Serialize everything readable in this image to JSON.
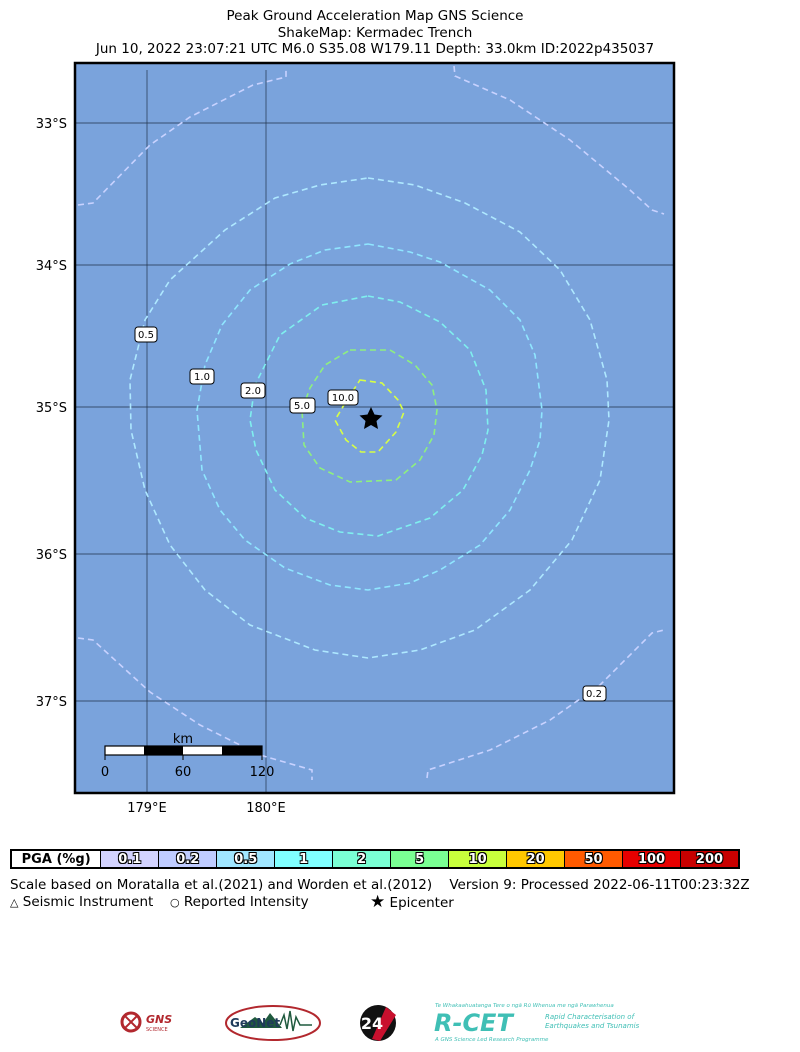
{
  "title": {
    "line1": "Peak Ground Acceleration Map GNS Science",
    "line2": "ShakeMap: Kermadec Trench",
    "line3": "Jun 10, 2022 23:07:21 UTC M6.0 S35.08 W179.11 Depth: 33.0km ID:2022p435037"
  },
  "map": {
    "background_color": "#7aa3dc",
    "lat_labels": [
      "33°S",
      "34°S",
      "35°S",
      "36°S",
      "37°S"
    ],
    "lon_labels": [
      "179°E",
      "180°E"
    ],
    "contour_labels": [
      "0.5",
      "1.0",
      "2.0",
      "5.0",
      "10.0",
      "0.2"
    ],
    "epicenter_icon": "star-icon",
    "scalebar": {
      "unit": "km",
      "ticks": [
        "0",
        "60",
        "120"
      ]
    }
  },
  "legend": {
    "label": "PGA (%g)",
    "items": [
      {
        "value": "0.1",
        "color": "#d3d3ff"
      },
      {
        "value": "0.2",
        "color": "#bfccff"
      },
      {
        "value": "0.5",
        "color": "#a0e6ff"
      },
      {
        "value": "1",
        "color": "#80ffff"
      },
      {
        "value": "2",
        "color": "#7affd4"
      },
      {
        "value": "5",
        "color": "#7aff93"
      },
      {
        "value": "10",
        "color": "#c8ff3c"
      },
      {
        "value": "20",
        "color": "#ffc800"
      },
      {
        "value": "50",
        "color": "#ff5a00"
      },
      {
        "value": "100",
        "color": "#e60000"
      },
      {
        "value": "200",
        "color": "#c80000"
      }
    ]
  },
  "notes": {
    "scale_line": "Scale based on Moratalla et al.(2021) and Worden et al.(2012)",
    "version_line": "Version 9: Processed 2022-06-11T00:23:32Z",
    "seismic_instrument": "Seismic Instrument",
    "reported_intensity": "Reported Intensity",
    "epicenter": "Epicenter"
  },
  "logos": {
    "gns": "GNS",
    "gns_sub": "SCIENCE",
    "geonet": "GeoNet",
    "ts": "24",
    "rcet": "R-CET",
    "rcet_top": "Te Whakaahuatanga Tere o ngā Rū Whenua me ngā Parawhenua",
    "rcet_side1": "Rapid Characterisation of",
    "rcet_side2": "Earthquakes and Tsunamis",
    "rcet_bottom": "A GNS Science Led Research Programme"
  }
}
